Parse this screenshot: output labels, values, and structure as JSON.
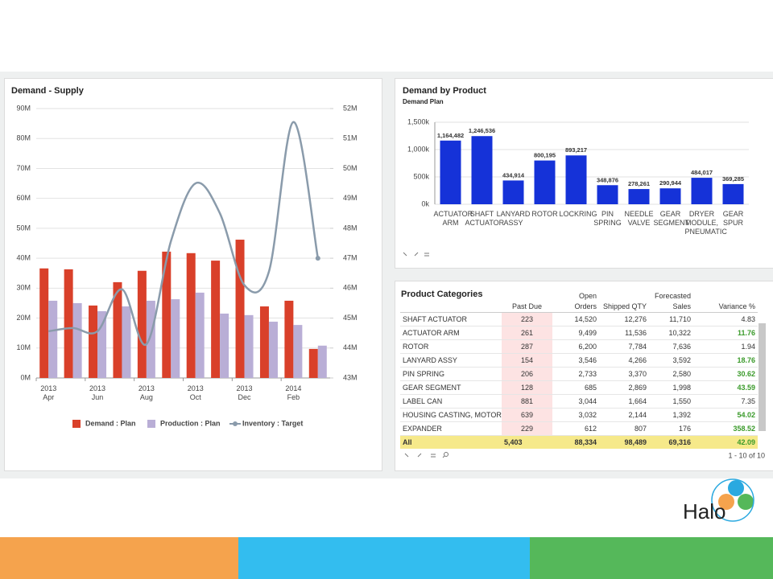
{
  "chart_data": [
    {
      "type": "bar",
      "title": "Demand - Supply",
      "categories": [
        "2013\nApr",
        null,
        "2013\nJun",
        null,
        "2013\nAug",
        null,
        "2013\nOct",
        null,
        "2013\nDec",
        null,
        "2014\nFeb",
        null
      ],
      "series": [
        {
          "name": "Demand : Plan",
          "color": "#d9402a",
          "values": [
            36.6,
            36.3,
            24.2,
            32,
            35.8,
            42.2,
            41.7,
            39.2,
            46.2,
            23.9,
            25.8,
            9.7
          ]
        },
        {
          "name": "Production : Plan",
          "color": "#b9aed6",
          "values": [
            25.8,
            25,
            22.3,
            23.9,
            25.8,
            26.3,
            28.5,
            21.5,
            21,
            18.8,
            17.7,
            10.8
          ]
        },
        {
          "name": "Inventory : Target",
          "type": "line",
          "axis": "y2",
          "color": "#8a9bab",
          "values": [
            44.56,
            44.67,
            44.56,
            45.96,
            44.13,
            47.57,
            49.5,
            48.5,
            46.1,
            46.55,
            51.55,
            47.0
          ]
        }
      ],
      "ylim": [
        0,
        90
      ],
      "yticks": [
        {
          "value": 0,
          "label": "0M"
        },
        {
          "value": 10,
          "label": "10M"
        },
        {
          "value": 20,
          "label": "20M"
        },
        {
          "value": 30,
          "label": "30M"
        },
        {
          "value": 40,
          "label": "40M"
        },
        {
          "value": 50,
          "label": "50M"
        },
        {
          "value": 60,
          "label": "60M"
        },
        {
          "value": 70,
          "label": "70M"
        },
        {
          "value": 80,
          "label": "80M"
        },
        {
          "value": 90,
          "label": "90M"
        }
      ],
      "y2lim": [
        43,
        52
      ],
      "y2ticks": [
        {
          "value": 43,
          "label": "43M"
        },
        {
          "value": 44,
          "label": "44M"
        },
        {
          "value": 45,
          "label": "45M"
        },
        {
          "value": 46,
          "label": "46M"
        },
        {
          "value": 47,
          "label": "47M"
        },
        {
          "value": 48,
          "label": "48M"
        },
        {
          "value": 49,
          "label": "49M"
        },
        {
          "value": 50,
          "label": "50M"
        },
        {
          "value": 51,
          "label": "51M"
        },
        {
          "value": 52,
          "label": "52M"
        }
      ],
      "grid": true,
      "legend": "bottom"
    },
    {
      "type": "bar",
      "title": "Demand by Product",
      "subtitle": "Demand Plan",
      "categories": [
        "ACTUATOR ARM",
        "SHAFT ACTUATOR",
        "LANYARD ASSY",
        "ROTOR",
        "LOCKRING",
        "PIN SPRING",
        "NEEDLE VALVE",
        "GEAR SEGMENT",
        "DRYER MODULE, PNEUMATIC",
        "GEAR SPUR"
      ],
      "values": [
        1164482,
        1246536,
        434914,
        800195,
        893217,
        348876,
        278261,
        290944,
        484017,
        369285
      ],
      "value_labels": [
        "1,164,482",
        "1,246,536",
        "434,914",
        "800,195",
        "893,217",
        "348,876",
        "278,261",
        "290,944",
        "484,017",
        "369,285"
      ],
      "color": "#1532d8",
      "ylim": [
        0,
        1500000
      ],
      "yticks": [
        {
          "value": 0,
          "label": "0k"
        },
        {
          "value": 500000,
          "label": "500k"
        },
        {
          "value": 1000000,
          "label": "1,000k"
        },
        {
          "value": 1500000,
          "label": "1,500k"
        }
      ],
      "grid": true
    }
  ],
  "table": {
    "title": "Product Categories",
    "columns": [
      "Past Due",
      "Open Orders",
      "Shipped QTY",
      "Forecasted\nSales",
      "Variance %"
    ],
    "rows": [
      [
        "SHAFT ACTUATOR",
        "223",
        "14,520",
        "12,276",
        "11,710",
        "4.83"
      ],
      [
        "ACTUATOR ARM",
        "261",
        "9,499",
        "11,536",
        "10,322",
        "11.76"
      ],
      [
        "ROTOR",
        "287",
        "6,200",
        "7,784",
        "7,636",
        "1.94"
      ],
      [
        "LANYARD ASSY",
        "154",
        "3,546",
        "4,266",
        "3,592",
        "18.76"
      ],
      [
        "PIN SPRING",
        "206",
        "2,733",
        "3,370",
        "2,580",
        "30.62"
      ],
      [
        "GEAR SEGMENT",
        "128",
        "685",
        "2,869",
        "1,998",
        "43.59"
      ],
      [
        "LABEL CAN",
        "881",
        "3,044",
        "1,664",
        "1,550",
        "7.35"
      ],
      [
        "HOUSING CASTING, MOTOR",
        "639",
        "3,032",
        "2,144",
        "1,392",
        "54.02"
      ],
      [
        "EXPANDER",
        "229",
        "612",
        "807",
        "176",
        "358.52"
      ]
    ],
    "total": [
      "All",
      "5,403",
      "88,334",
      "98,489",
      "69,316",
      "42.09"
    ],
    "pager": "1 - 10 of 10"
  },
  "logo": "Halo"
}
